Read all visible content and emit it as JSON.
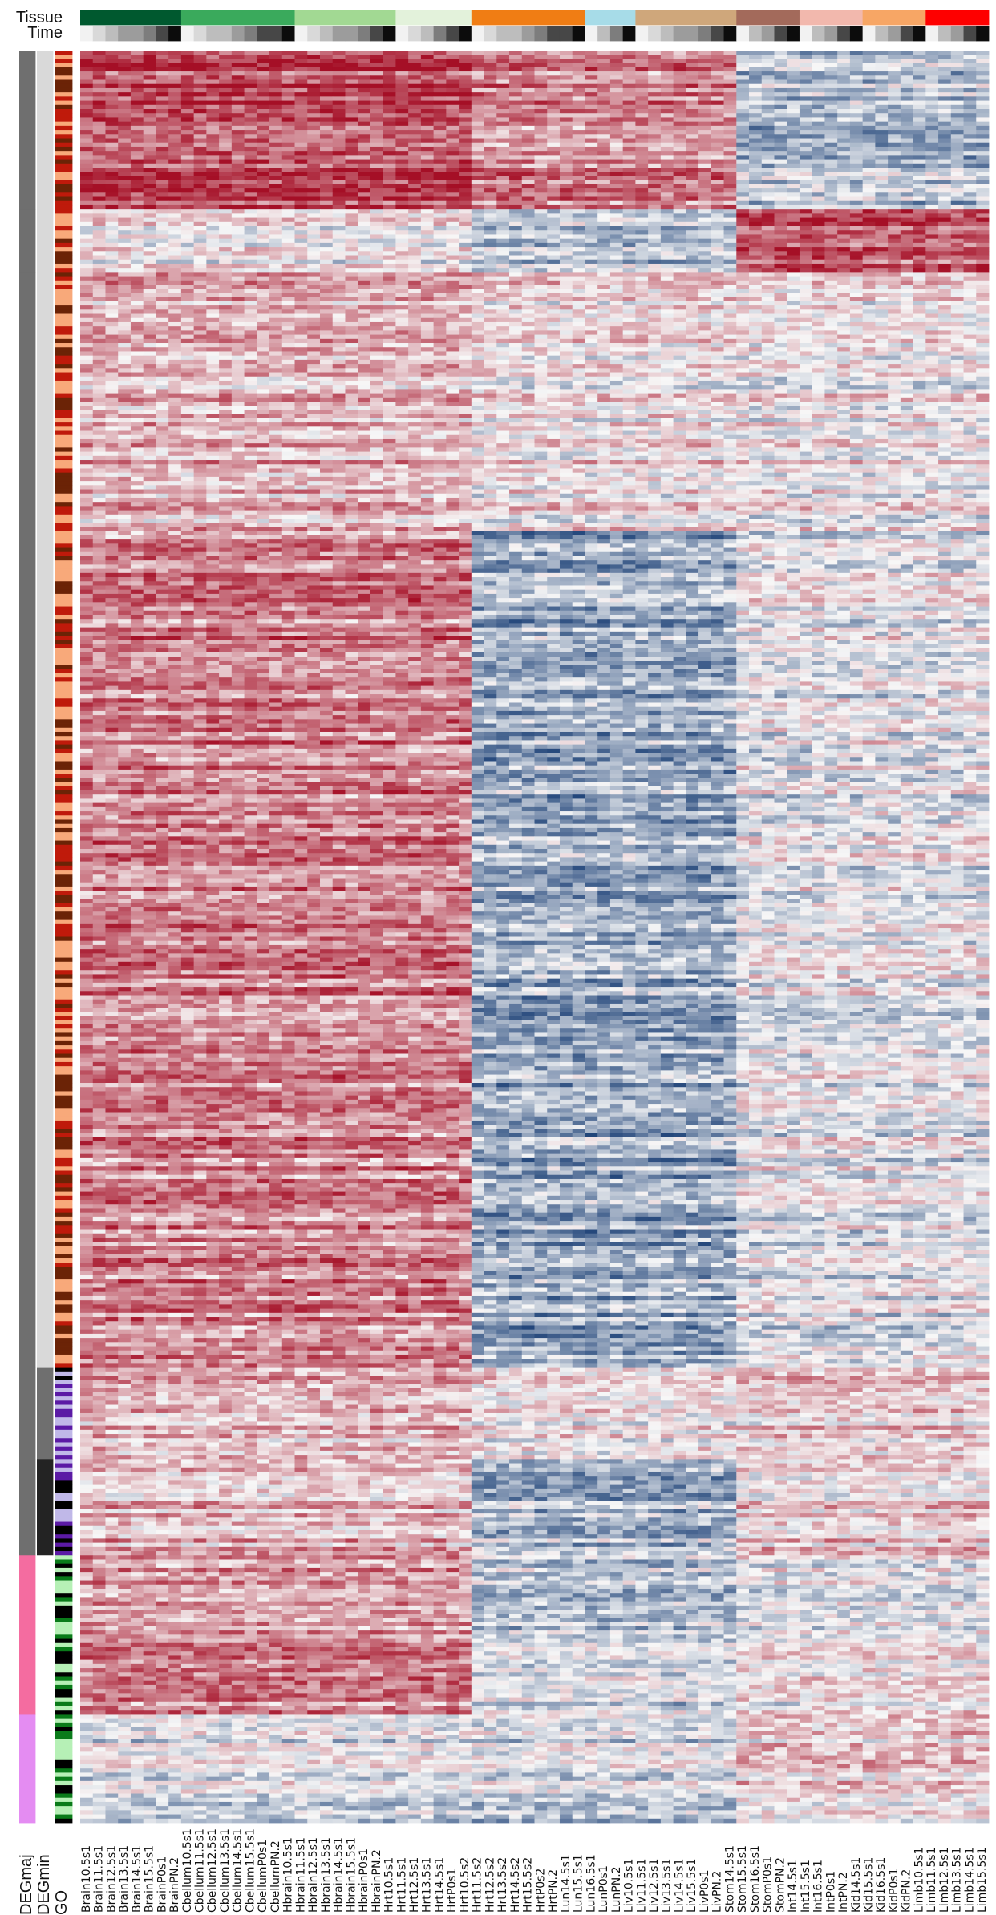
{
  "figure": {
    "top_tracks": [
      "Tissue",
      "Time"
    ],
    "left_tracks": [
      "DEGmaj",
      "DEGmin",
      "GO"
    ]
  },
  "colors": {
    "tissues": [
      "#00592f",
      "#3aaa5c",
      "#a2d993",
      "#e3f2db",
      "#f07d14",
      "#a7dce8",
      "#cfa77b",
      "#a36a5b",
      "#f2b8ad",
      "#f7a665",
      "#fe0000"
    ],
    "time": [
      "#f2f2f2",
      "#d9d9d9",
      "#bdbdbd",
      "#9c9c9c",
      "#7d7d7d",
      "#474747",
      "#0c0c0c"
    ],
    "deg_maj": [
      "#6f6f6f",
      "#f46ca0",
      "#e48cf2"
    ],
    "deg_min": [
      "#d9d9d9",
      "#6f6f6f",
      "#232323"
    ],
    "go": [
      "#f8a97a",
      "#bf1a0b",
      "#6b2306",
      "#e06a0f",
      "#5b1aa5",
      "#c0b8e8",
      "#000000",
      "#b6f0b6",
      "#0a7b1a"
    ],
    "heat_low": "#08306b",
    "heat_mid": "#f7f7f7",
    "heat_high": "#a50f26"
  },
  "chart_data": {
    "type": "heatmap",
    "top_tracks": [
      "Tissue",
      "Time"
    ],
    "left_tracks": [
      "DEGmaj",
      "DEGmin",
      "GO"
    ],
    "columns": [
      "Brain10.5s1",
      "Brain11.5s1",
      "Brain12.5s1",
      "Brain13.5s1",
      "Brain14.5s1",
      "Brain15.5s1",
      "BrainP0s1",
      "BrainPN.2",
      "Cbellum10.5s1",
      "Cbellum11.5s1",
      "Cbellum12.5s1",
      "Cbellum13.5s1",
      "Cbellum14.5s1",
      "Cbellum15.5s1",
      "CbellumP0s1",
      "CbellumPN.2",
      "Hbrain10.5s1",
      "Hbrain11.5s1",
      "Hbrain12.5s1",
      "Hbrain13.5s1",
      "Hbrain14.5s1",
      "Hbrain15.5s1",
      "HbrainP0s1",
      "HbrainPN.2",
      "Hrt10.5s1",
      "Hrt11.5s1",
      "Hrt12.5s1",
      "Hrt13.5s1",
      "Hrt14.5s1",
      "HrtP0s1",
      "Hrt10.5s2",
      "Hrt11.5s2",
      "Hrt12.5s2",
      "Hrt13.5s2",
      "Hrt14.5s2",
      "Hrt15.5s2",
      "HrtP0s2",
      "HrtPN.2",
      "Lun14.5s1",
      "Lun15.5s1",
      "Lun16.5s1",
      "LunP0s1",
      "LunPN.2",
      "Liv10.5s1",
      "Liv11.5s1",
      "Liv12.5s1",
      "Liv13.5s1",
      "Liv14.5s1",
      "Liv15.5s1",
      "LivP0s1",
      "LivPN.2",
      "Stom14.5s1",
      "Stom15.5s1",
      "Stom16.5s1",
      "StomP0s1",
      "StomPN.2",
      "Int14.5s1",
      "Int15.5s1",
      "Int16.5s1",
      "IntP0s1",
      "IntPN.2",
      "Kid14.5s1",
      "Kid15.5s1",
      "Kid16.5s1",
      "KidP0s1",
      "KidPN.2",
      "Limb10.5s1",
      "Limb11.5s1",
      "Limb12.5s1",
      "Limb13.5s1",
      "Limb14.5s1",
      "Limb15.5s1"
    ],
    "tissue_groups": [
      {
        "start": 0,
        "count": 8
      },
      {
        "start": 8,
        "count": 9
      },
      {
        "start": 17,
        "count": 8
      },
      {
        "start": 25,
        "count": 6
      },
      {
        "start": 31,
        "count": 9
      },
      {
        "start": 40,
        "count": 4
      },
      {
        "start": 44,
        "count": 8
      },
      {
        "start": 52,
        "count": 5
      },
      {
        "start": 57,
        "count": 5
      },
      {
        "start": 62,
        "count": 5
      },
      {
        "start": 67,
        "count": 5
      }
    ],
    "row_count": 360,
    "color_scale": [
      "blue (low)",
      "white (mid)",
      "red (high)"
    ],
    "row_blocks": [
      {
        "start": 0,
        "count": 38,
        "deg_maj": 0,
        "deg_min": 0,
        "profile": [
          0.72,
          0.48,
          -0.3
        ]
      },
      {
        "start": 38,
        "count": 15,
        "deg_maj": 0,
        "deg_min": 0,
        "profile": [
          0.05,
          -0.25,
          0.7
        ]
      },
      {
        "start": 53,
        "count": 62,
        "deg_maj": 0,
        "deg_min": 0,
        "profile": [
          0.3,
          0.1,
          0.05
        ]
      },
      {
        "start": 115,
        "count": 200,
        "deg_maj": 0,
        "deg_min": 0,
        "profile": [
          0.5,
          -0.38,
          -0.05
        ]
      },
      {
        "start": 315,
        "count": 22,
        "deg_maj": 0,
        "deg_min": 1,
        "profile": [
          0.25,
          0.05,
          0.15
        ]
      },
      {
        "start": 337,
        "count": 23,
        "deg_maj": 0,
        "deg_min": 2,
        "profile": [
          0.3,
          -0.3,
          0.2
        ]
      }
    ],
    "lower_blocks": [
      {
        "rows": 38,
        "deg_maj": 1,
        "profile": [
          0.45,
          -0.2,
          0.0
        ]
      },
      {
        "rows": 26,
        "deg_maj": 2,
        "profile": [
          -0.1,
          -0.15,
          0.15
        ]
      }
    ]
  }
}
